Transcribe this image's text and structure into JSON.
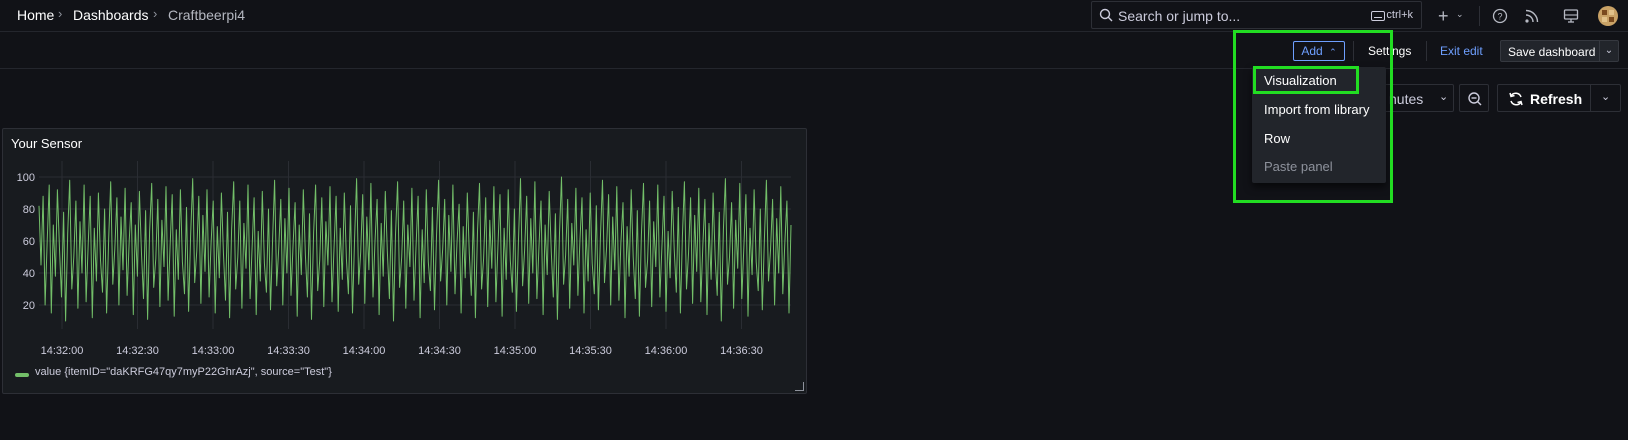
{
  "breadcrumb": {
    "home": "Home",
    "dashboards": "Dashboards",
    "current": "Craftbeerpi4"
  },
  "search": {
    "placeholder": "Search or jump to...",
    "shortcut": "ctrl+k"
  },
  "topbar_icons": [
    "plus-icon",
    "help-icon",
    "rss-icon",
    "monitor-icon",
    "avatar"
  ],
  "edit_toolbar": {
    "add_label": "Add",
    "settings_label": "Settings",
    "exit_edit_label": "Exit edit",
    "save_label": "Save dashboard"
  },
  "time_controls": {
    "range_label": "nutes",
    "refresh_label": "Refresh"
  },
  "add_menu": {
    "items": [
      {
        "label": "Visualization",
        "disabled": false
      },
      {
        "label": "Import from library",
        "disabled": false
      },
      {
        "label": "Row",
        "disabled": false
      },
      {
        "label": "Paste panel",
        "disabled": true
      }
    ]
  },
  "panel": {
    "title": "Your Sensor",
    "legend": "value {itemID=\"daKRFG47qy7myP22GhrAzj\", source=\"Test\"}"
  },
  "colors": {
    "series": "#73bf69",
    "accent": "#6e9fff",
    "highlight": "#22dd22"
  },
  "chart_data": {
    "type": "line",
    "title": "Your Sensor",
    "xlabel": "",
    "ylabel": "",
    "y_ticks": [
      100,
      80,
      60,
      40,
      20
    ],
    "x_ticks": [
      "14:32:00",
      "14:32:30",
      "14:33:00",
      "14:33:30",
      "14:34:00",
      "14:34:30",
      "14:35:00",
      "14:35:30",
      "14:36:00",
      "14:36:30"
    ],
    "ylim": [
      5,
      105
    ],
    "grid": true,
    "legend_position": "bottom-left",
    "series": [
      {
        "name": "value {itemID=\"daKRFG47qy7myP22GhrAzj\", source=\"Test\"}",
        "values": [
          82,
          45,
          88,
          20,
          60,
          95,
          15,
          70,
          38,
          92,
          55,
          25,
          78,
          10,
          65,
          98,
          30,
          50,
          85,
          18,
          72,
          40,
          95,
          22,
          58,
          88,
          12,
          68,
          35,
          90,
          48,
          28,
          80,
          15,
          62,
          97,
          33,
          55,
          87,
          20,
          75,
          42,
          93,
          26,
          60,
          84,
          14,
          70,
          38,
          91,
          52,
          24,
          79,
          11,
          66,
          96,
          31,
          49,
          86,
          19,
          73,
          44,
          94,
          23,
          57,
          89,
          13,
          67,
          36,
          92,
          47,
          27,
          81,
          16,
          63,
          99,
          34,
          54,
          88,
          21,
          76,
          41,
          92,
          25,
          59,
          85,
          15,
          69,
          37,
          90,
          53,
          23,
          78,
          12,
          67,
          97,
          30,
          50,
          85,
          18,
          71,
          43,
          95,
          24,
          56,
          87,
          14,
          66,
          35,
          91,
          46,
          28,
          80,
          17,
          61,
          98,
          32,
          55,
          86,
          20,
          74,
          40,
          93,
          26,
          58,
          84,
          13,
          70,
          39,
          92,
          51,
          25,
          77,
          11,
          65,
          95,
          29,
          48,
          87,
          19,
          72,
          45,
          94,
          22,
          57,
          88,
          16,
          68,
          36,
          90,
          49,
          27,
          82,
          15,
          62,
          99,
          33,
          53,
          89,
          21,
          75,
          42,
          96,
          25,
          60,
          86,
          14,
          71,
          38,
          91,
          54,
          24,
          79,
          10,
          64,
          97,
          31,
          50,
          85,
          18,
          70,
          44,
          93,
          23,
          56,
          88,
          12,
          67,
          34,
          92,
          47,
          29,
          81,
          17,
          63,
          98,
          35,
          55,
          86,
          20,
          76,
          41,
          95,
          27,
          59,
          83,
          15,
          69,
          37,
          90,
          52,
          26,
          78,
          12,
          66,
          96,
          30,
          49,
          87,
          19,
          73,
          43,
          94,
          22,
          58,
          89,
          13,
          68,
          36,
          92,
          48,
          28,
          80,
          16,
          61,
          99,
          32,
          54,
          88,
          21,
          74,
          40,
          97,
          24,
          57,
          85,
          14,
          70,
          39,
          91,
          53,
          25,
          77,
          11,
          65,
          100,
          33,
          51,
          86,
          18,
          71,
          45,
          93,
          26,
          60,
          87,
          15,
          67,
          35,
          90,
          46,
          27,
          82,
          17,
          62,
          98,
          34,
          56,
          89,
          20,
          75,
          42,
          94,
          23,
          59,
          84,
          12,
          69,
          38,
          92,
          50,
          24,
          79,
          13,
          64,
          96,
          31,
          48,
          85,
          19,
          72,
          44,
          95,
          25,
          56,
          88,
          16,
          66,
          37,
          91,
          55,
          28,
          81,
          15,
          63,
          97,
          30,
          52,
          87,
          21,
          76,
          41,
          93,
          22,
          58,
          86,
          14,
          71,
          36,
          90,
          49,
          26,
          78,
          10,
          67,
          99,
          33,
          50,
          84,
          18,
          73,
          43,
          96,
          24,
          57,
          89,
          13,
          68,
          39,
          92,
          47,
          29,
          80,
          17,
          61,
          98,
          35,
          54,
          86,
          20,
          74,
          40,
          94,
          27,
          60,
          85,
          15,
          70
        ]
      }
    ]
  }
}
